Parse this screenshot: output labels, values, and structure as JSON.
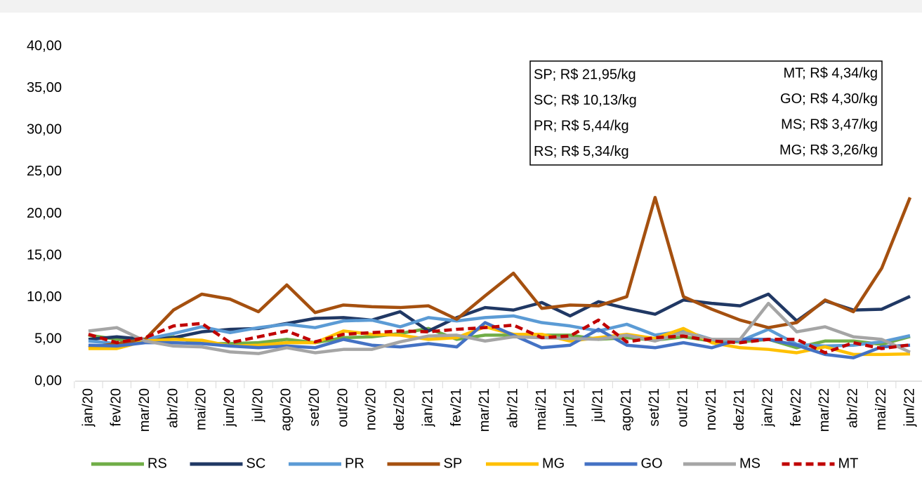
{
  "chart_data": {
    "type": "line",
    "categories": [
      "jan/20",
      "fev/20",
      "mar/20",
      "abr/20",
      "mai/20",
      "jun/20",
      "jul/20",
      "ago/20",
      "set/20",
      "out/20",
      "nov/20",
      "dez/20",
      "jan/21",
      "fev/21",
      "mar/21",
      "abr/21",
      "mai/21",
      "jun/21",
      "jul/21",
      "ago/21",
      "set/21",
      "out/21",
      "nov/21",
      "dez/21",
      "jan/22",
      "fev/22",
      "mar/22",
      "abr/22",
      "mai/22",
      "jun/22"
    ],
    "ylim": [
      0,
      40
    ],
    "yticks": [
      {
        "value": 0,
        "label": "0,00"
      },
      {
        "value": 5,
        "label": "5,00"
      },
      {
        "value": 10,
        "label": "10,00"
      },
      {
        "value": 15,
        "label": "15,00"
      },
      {
        "value": 20,
        "label": "20,00"
      },
      {
        "value": 25,
        "label": "25,00"
      },
      {
        "value": 30,
        "label": "30,00"
      },
      {
        "value": 35,
        "label": "35,00"
      },
      {
        "value": 40,
        "label": "40,00"
      }
    ],
    "annotation_box": {
      "left": [
        "SP; R$ 21,95/kg",
        "SC; R$ 10,13/kg",
        "PR; R$ 5,44/kg",
        "RS; R$ 5,34/kg"
      ],
      "right": [
        "MT; R$ 4,34/kg",
        "GO; R$ 4,30/kg",
        "MS; R$ 3,47/kg",
        "MG; R$ 3,26/kg"
      ]
    },
    "legend": "bottom",
    "series": [
      {
        "name": "RS",
        "color": "#70ad47",
        "values": [
          5.5,
          5.0,
          4.8,
          5.3,
          4.5,
          4.5,
          4.6,
          5.0,
          4.6,
          5.2,
          5.3,
          5.7,
          6.3,
          5.0,
          5.5,
          5.5,
          5.5,
          5.5,
          5.0,
          5.2,
          4.9,
          5.3,
          4.8,
          4.7,
          5.0,
          4.0,
          4.8,
          4.8,
          4.4,
          5.34
        ]
      },
      {
        "name": "SC",
        "color": "#203864",
        "values": [
          5.0,
          5.3,
          5.0,
          5.2,
          5.9,
          6.2,
          6.3,
          6.9,
          7.5,
          7.6,
          7.3,
          8.3,
          6.0,
          7.6,
          8.8,
          8.5,
          9.4,
          7.8,
          9.5,
          8.7,
          8.0,
          9.7,
          9.3,
          9.0,
          10.4,
          7.2,
          9.6,
          8.5,
          8.6,
          10.13
        ]
      },
      {
        "name": "PR",
        "color": "#5b9bd5",
        "values": [
          4.8,
          4.5,
          5.0,
          5.7,
          6.5,
          5.8,
          6.4,
          6.8,
          6.4,
          7.2,
          7.3,
          6.5,
          7.6,
          7.2,
          7.6,
          7.8,
          7.0,
          6.6,
          6.0,
          6.8,
          5.5,
          6.0,
          5.0,
          4.8,
          6.2,
          4.4,
          4.2,
          4.3,
          4.7,
          5.44
        ]
      },
      {
        "name": "SP",
        "color": "#a5500f",
        "values": [
          4.0,
          4.5,
          5.0,
          8.5,
          10.4,
          9.8,
          8.3,
          11.5,
          8.2,
          9.1,
          8.9,
          8.8,
          9.0,
          7.4,
          10.2,
          12.9,
          8.7,
          9.1,
          9.0,
          10.1,
          21.95,
          10.1,
          8.6,
          7.3,
          6.4,
          7.0,
          9.7,
          8.3,
          13.5,
          21.95
        ]
      },
      {
        "name": "MG",
        "color": "#ffc000",
        "values": [
          3.9,
          3.9,
          4.8,
          5.0,
          4.9,
          4.2,
          4.3,
          4.6,
          4.6,
          6.0,
          5.6,
          5.5,
          5.0,
          5.2,
          6.5,
          5.6,
          5.6,
          4.8,
          5.2,
          5.6,
          5.1,
          6.3,
          4.6,
          4.0,
          3.8,
          3.4,
          4.1,
          3.2,
          3.2,
          3.26
        ]
      },
      {
        "name": "GO",
        "color": "#4472c4",
        "values": [
          4.3,
          4.2,
          4.6,
          4.6,
          4.5,
          4.2,
          4.0,
          4.2,
          4.0,
          5.0,
          4.3,
          4.1,
          4.5,
          4.1,
          7.0,
          5.5,
          4.0,
          4.3,
          6.2,
          4.3,
          4.0,
          4.6,
          4.0,
          5.0,
          5.0,
          4.3,
          3.2,
          2.8,
          4.1,
          4.3
        ]
      },
      {
        "name": "MS",
        "color": "#a5a5a5",
        "values": [
          6.0,
          6.4,
          4.8,
          4.2,
          4.1,
          3.5,
          3.3,
          4.0,
          3.4,
          3.8,
          3.8,
          4.7,
          5.4,
          5.5,
          4.8,
          5.3,
          5.2,
          5.1,
          5.0,
          5.5,
          4.8,
          5.8,
          5.0,
          5.0,
          9.3,
          5.9,
          6.5,
          5.3,
          5.0,
          3.47
        ]
      },
      {
        "name": "MT",
        "color": "#c00000",
        "dashed": true,
        "values": [
          5.6,
          4.6,
          5.2,
          6.6,
          6.9,
          4.6,
          5.3,
          6.0,
          4.7,
          5.6,
          5.8,
          6.0,
          5.9,
          6.2,
          6.4,
          6.7,
          5.2,
          5.4,
          7.3,
          4.7,
          5.2,
          5.4,
          4.8,
          4.6,
          5.0,
          5.0,
          3.4,
          4.6,
          3.9,
          4.34
        ]
      }
    ]
  }
}
